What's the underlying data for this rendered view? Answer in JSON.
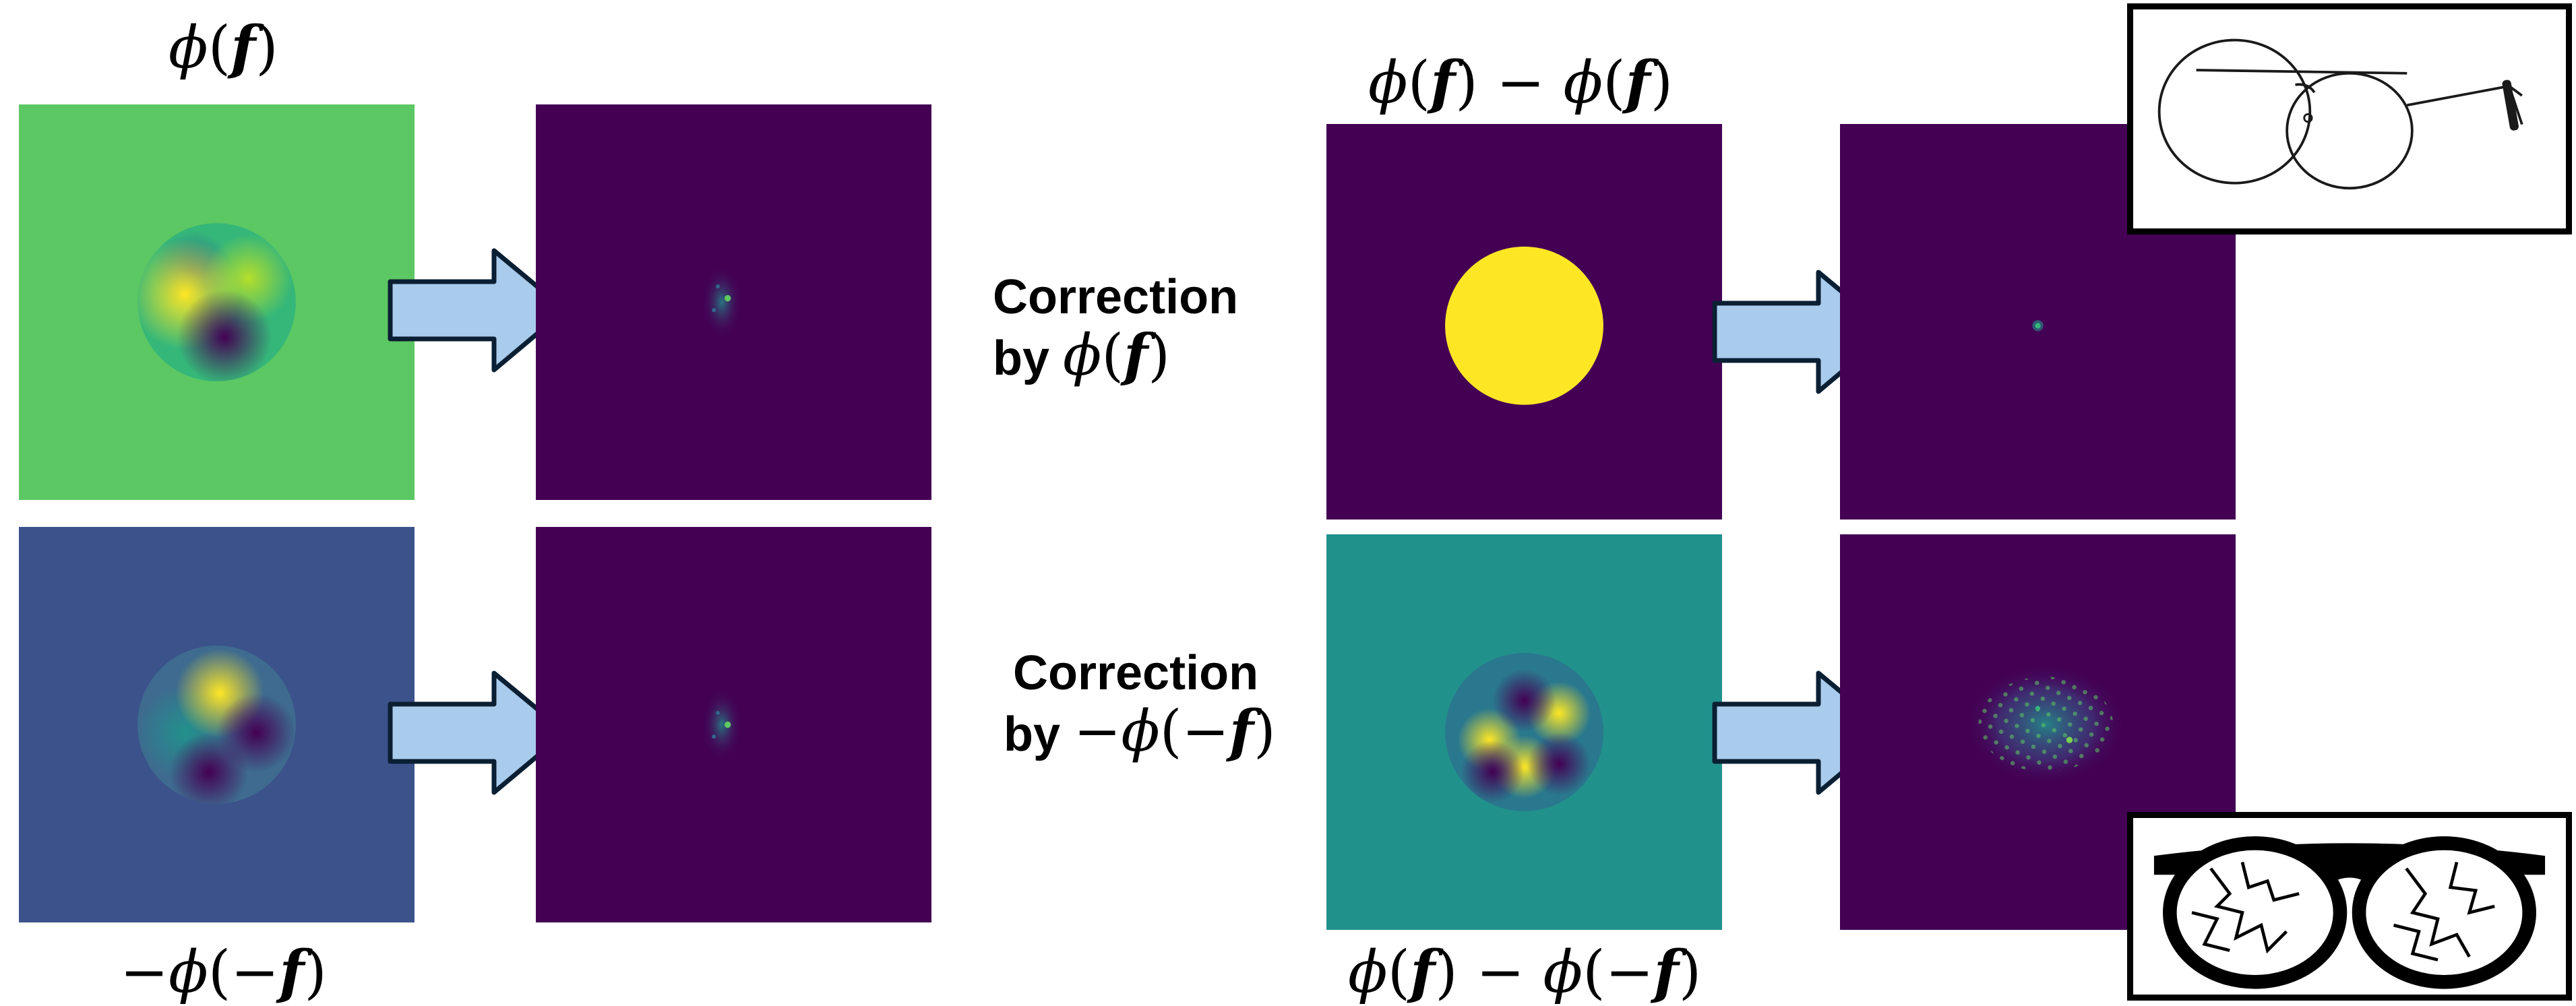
{
  "left": {
    "top_label": "ϕ(f)",
    "bottom_label": "−ϕ(−f)"
  },
  "right": {
    "top_label": "ϕ(f) − ϕ(f)",
    "bottom_label": "ϕ(f) − ϕ(−f)"
  },
  "corrections": [
    {
      "line1": "Correction",
      "line2_prefix": "by",
      "expr": "ϕ(f)"
    },
    {
      "line1": "Correction",
      "line2_prefix": "by",
      "expr": "−ϕ(−f)"
    }
  ],
  "icons": {
    "top_right": "intact-eyeglasses-icon",
    "bottom_right": "cracked-eyeglasses-icon"
  },
  "colors": {
    "viridis_purple": "#440154",
    "green_background": "#5cc863",
    "blue_background": "#3b528b",
    "teal_background": "#21918c",
    "yellow": "#fde725",
    "arrow_fill": "#a9cbec",
    "arrow_stroke": "#0b1f33"
  }
}
